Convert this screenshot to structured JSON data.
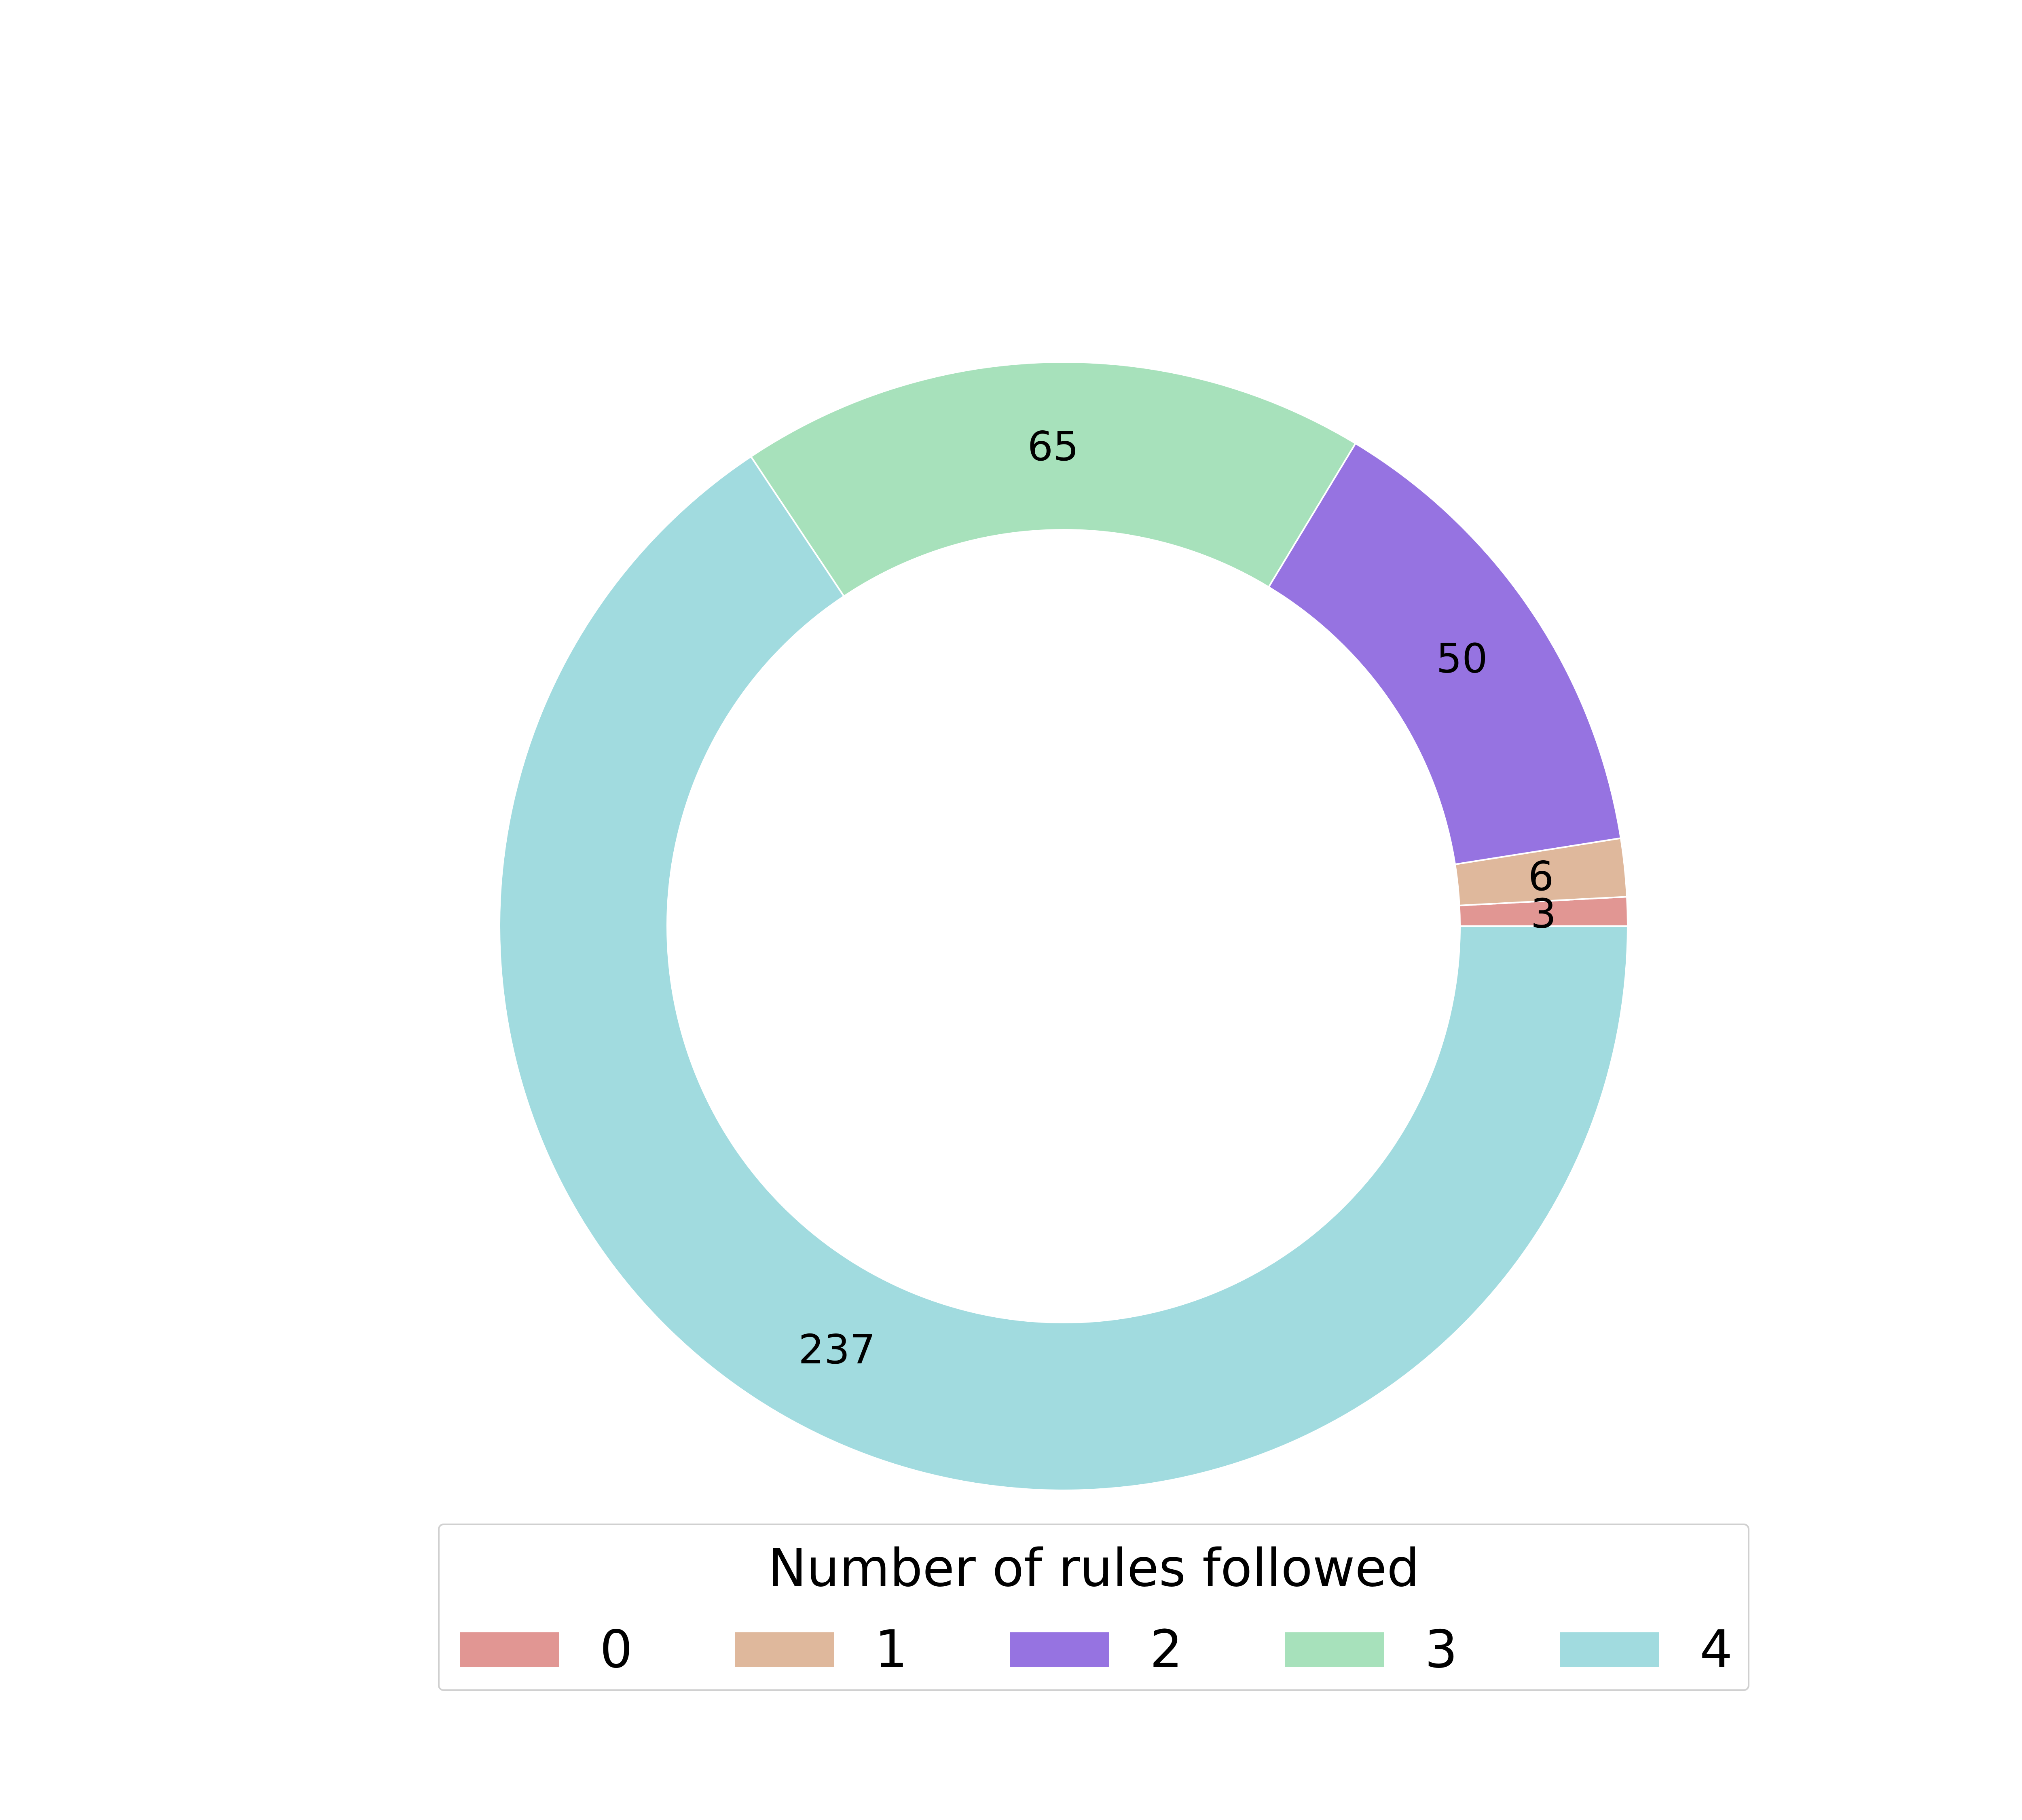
{
  "chart_data": {
    "type": "pie",
    "donut": true,
    "categories": [
      "0",
      "1",
      "2",
      "3",
      "4"
    ],
    "values": [
      3,
      6,
      50,
      65,
      237
    ],
    "colors": [
      "#e19693",
      "#dfb89c",
      "#9673e1",
      "#a7e1bb",
      "#a1dbdf"
    ],
    "labels": [
      "3",
      "6",
      "50",
      "65",
      "237"
    ],
    "start_angle_deg": 0,
    "direction": "counterclockwise",
    "legend": {
      "title": "Number of rules followed",
      "placement": "bottom-center",
      "entries": [
        "0",
        "1",
        "2",
        "3",
        "4"
      ]
    }
  }
}
